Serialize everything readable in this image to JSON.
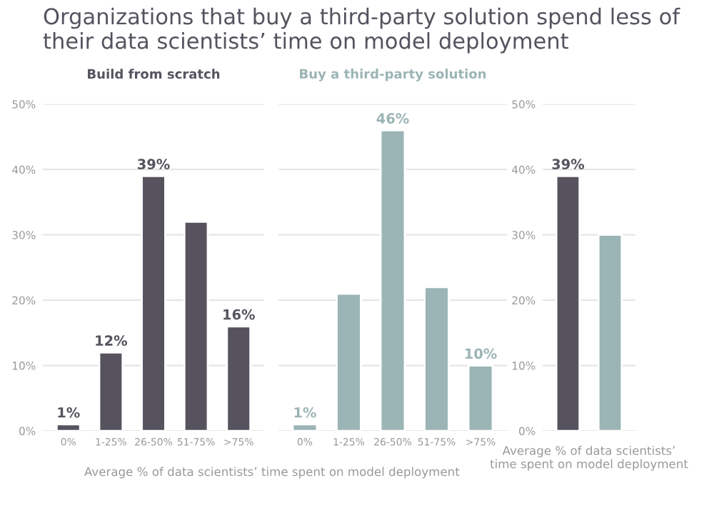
{
  "chart_data": [
    {
      "type": "bar",
      "title": "Organizations that buy a third-party solution spend less of their data scientists’ time on model deployment",
      "subtitle": "Build from scratch",
      "xlabel": "Average % of data scientists’ time spent on model deployment",
      "categories": [
        "0%",
        "1-25%",
        "26-50%",
        "51-75%",
        ">75%"
      ],
      "values": [
        1,
        12,
        39,
        32,
        16
      ],
      "value_labels": [
        "1%",
        "12%",
        "39%",
        null,
        "16%"
      ],
      "color": "#56535f",
      "ylim": [
        0,
        50
      ],
      "yticks": [
        {
          "value": 0,
          "label": "0%"
        },
        {
          "value": 10,
          "label": "10%"
        },
        {
          "value": 20,
          "label": "20%"
        },
        {
          "value": 30,
          "label": "30%"
        },
        {
          "value": 40,
          "label": "40%"
        },
        {
          "value": 50,
          "label": "50%"
        }
      ],
      "grid": "y"
    },
    {
      "type": "bar",
      "subtitle": "Buy a third-party solution",
      "categories": [
        "0%",
        "1-25%",
        "26-50%",
        "51-75%",
        ">75%"
      ],
      "values": [
        1,
        21,
        46,
        22,
        10
      ],
      "value_labels": [
        "1%",
        null,
        "46%",
        null,
        "10%"
      ],
      "color": "#9bb4b5",
      "ylim": [
        0,
        50
      ],
      "yticks": [
        {
          "value": 0,
          "label": null
        },
        {
          "value": 10,
          "label": null
        },
        {
          "value": 20,
          "label": null
        },
        {
          "value": 30,
          "label": null
        },
        {
          "value": 40,
          "label": null
        },
        {
          "value": 50,
          "label": null
        }
      ],
      "grid": "y",
      "tick_labels": "x"
    },
    {
      "type": "bar",
      "xlabel": "Average % of data scientists’\ntime spent on model deployment",
      "categories": [
        null,
        null
      ],
      "values": [
        39,
        30
      ],
      "value_labels": [
        "39%",
        null
      ],
      "colors": [
        "#56535f",
        "#9bb4b5"
      ],
      "ylim": [
        0,
        50
      ],
      "yticks": [
        {
          "value": 0,
          "label": "0%"
        },
        {
          "value": 10,
          "label": "10%"
        },
        {
          "value": 20,
          "label": "20%"
        },
        {
          "value": 30,
          "label": "30%"
        },
        {
          "value": 40,
          "label": "40%"
        },
        {
          "value": 50,
          "label": "50%"
        }
      ],
      "grid": "y"
    }
  ]
}
